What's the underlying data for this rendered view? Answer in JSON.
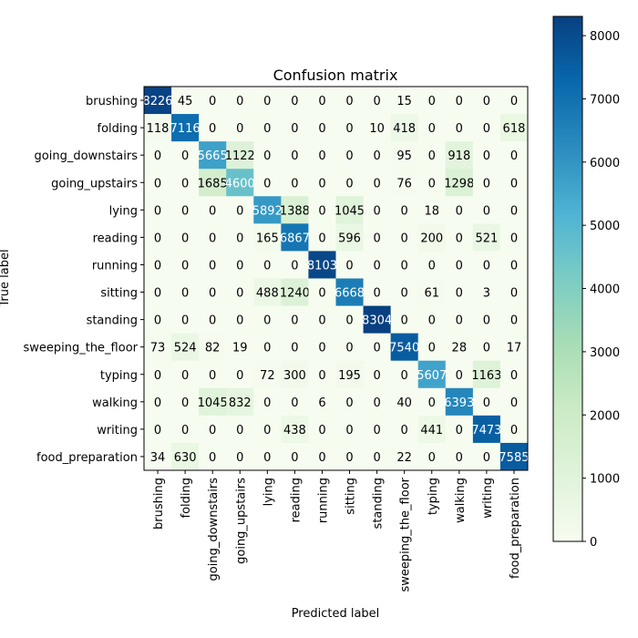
{
  "chart_data": {
    "type": "heatmap",
    "title": "Confusion matrix",
    "xlabel": "Predicted label",
    "ylabel": "True label",
    "categories": [
      "brushing",
      "folding",
      "going_downstairs",
      "going_upstairs",
      "lying",
      "reading",
      "running",
      "sitting",
      "standing",
      "sweeping_the_floor",
      "typing",
      "walking",
      "writing",
      "food_preparation"
    ],
    "matrix": [
      [
        8226,
        45,
        0,
        0,
        0,
        0,
        0,
        0,
        0,
        15,
        0,
        0,
        0,
        0
      ],
      [
        118,
        7116,
        0,
        0,
        0,
        0,
        0,
        0,
        10,
        418,
        0,
        0,
        0,
        618
      ],
      [
        0,
        0,
        5665,
        1122,
        0,
        0,
        0,
        0,
        0,
        95,
        0,
        918,
        0,
        0
      ],
      [
        0,
        0,
        1685,
        4600,
        0,
        0,
        0,
        0,
        0,
        76,
        0,
        1298,
        0,
        0
      ],
      [
        0,
        0,
        0,
        0,
        5892,
        1388,
        0,
        1045,
        0,
        0,
        18,
        0,
        0,
        0
      ],
      [
        0,
        0,
        0,
        0,
        165,
        6867,
        0,
        596,
        0,
        0,
        200,
        0,
        521,
        0
      ],
      [
        0,
        0,
        0,
        0,
        0,
        0,
        8103,
        0,
        0,
        0,
        0,
        0,
        0,
        0
      ],
      [
        0,
        0,
        0,
        0,
        488,
        1240,
        0,
        6668,
        0,
        0,
        61,
        0,
        3,
        0
      ],
      [
        0,
        0,
        0,
        0,
        0,
        0,
        0,
        0,
        8304,
        0,
        0,
        0,
        0,
        0
      ],
      [
        73,
        524,
        82,
        19,
        0,
        0,
        0,
        0,
        0,
        7540,
        0,
        28,
        0,
        17
      ],
      [
        0,
        0,
        0,
        0,
        72,
        300,
        0,
        195,
        0,
        0,
        5607,
        0,
        1163,
        0
      ],
      [
        0,
        0,
        1045,
        832,
        0,
        0,
        6,
        0,
        0,
        40,
        0,
        6393,
        0,
        0
      ],
      [
        0,
        0,
        0,
        0,
        0,
        438,
        0,
        0,
        0,
        0,
        441,
        0,
        7473,
        0
      ],
      [
        34,
        630,
        0,
        0,
        0,
        0,
        0,
        0,
        0,
        22,
        0,
        0,
        0,
        7585
      ]
    ],
    "value_range": [
      0,
      8304
    ],
    "colormap": "GnBu",
    "colorbar": {
      "ticks": [
        "0",
        "1000",
        "2000",
        "3000",
        "4000",
        "5000",
        "6000",
        "7000",
        "8000"
      ],
      "placement": "right"
    }
  }
}
